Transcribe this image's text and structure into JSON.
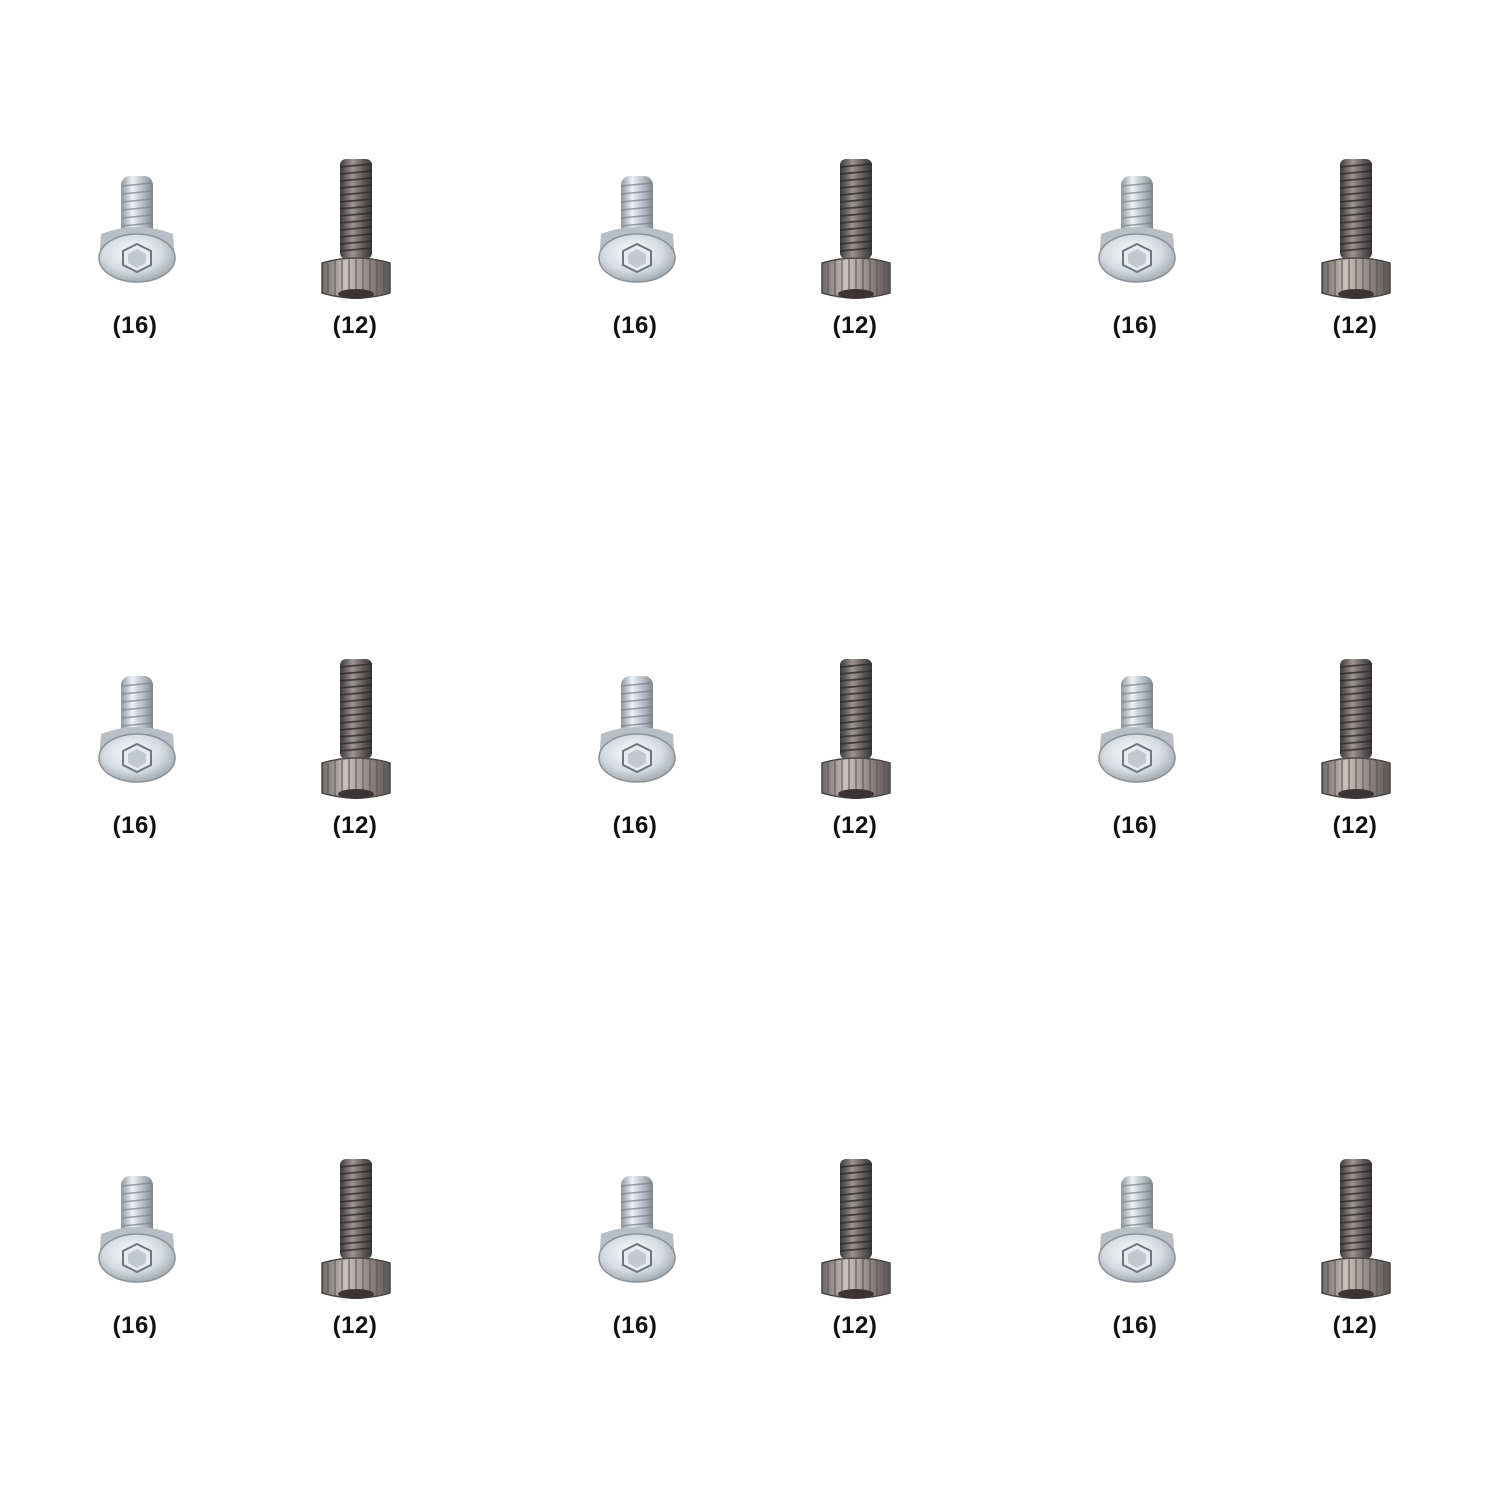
{
  "tiles": [
    {
      "items": [
        {
          "icon": "silver-socket-screw-icon",
          "count": "(16)"
        },
        {
          "icon": "dark-socket-screw-icon",
          "count": "(12)"
        }
      ]
    },
    {
      "items": [
        {
          "icon": "silver-socket-screw-icon",
          "count": "(16)"
        },
        {
          "icon": "dark-socket-screw-icon",
          "count": "(12)"
        }
      ]
    },
    {
      "items": [
        {
          "icon": "silver-socket-screw-icon",
          "count": "(16)"
        },
        {
          "icon": "dark-socket-screw-icon",
          "count": "(12)"
        }
      ]
    },
    {
      "items": [
        {
          "icon": "silver-socket-screw-icon",
          "count": "(16)"
        },
        {
          "icon": "dark-socket-screw-icon",
          "count": "(12)"
        }
      ]
    },
    {
      "items": [
        {
          "icon": "silver-socket-screw-icon",
          "count": "(16)"
        },
        {
          "icon": "dark-socket-screw-icon",
          "count": "(12)"
        }
      ]
    },
    {
      "items": [
        {
          "icon": "silver-socket-screw-icon",
          "count": "(16)"
        },
        {
          "icon": "dark-socket-screw-icon",
          "count": "(12)"
        }
      ]
    },
    {
      "items": [
        {
          "icon": "silver-socket-screw-icon",
          "count": "(16)"
        },
        {
          "icon": "dark-socket-screw-icon",
          "count": "(12)"
        }
      ]
    },
    {
      "items": [
        {
          "icon": "silver-socket-screw-icon",
          "count": "(16)"
        },
        {
          "icon": "dark-socket-screw-icon",
          "count": "(12)"
        }
      ]
    },
    {
      "items": [
        {
          "icon": "silver-socket-screw-icon",
          "count": "(16)"
        },
        {
          "icon": "dark-socket-screw-icon",
          "count": "(12)"
        }
      ]
    }
  ],
  "colors": {
    "background": "#ffffff",
    "label": "#111111",
    "silver_screw": "#c9ced4",
    "dark_screw": "#6f6a68"
  }
}
